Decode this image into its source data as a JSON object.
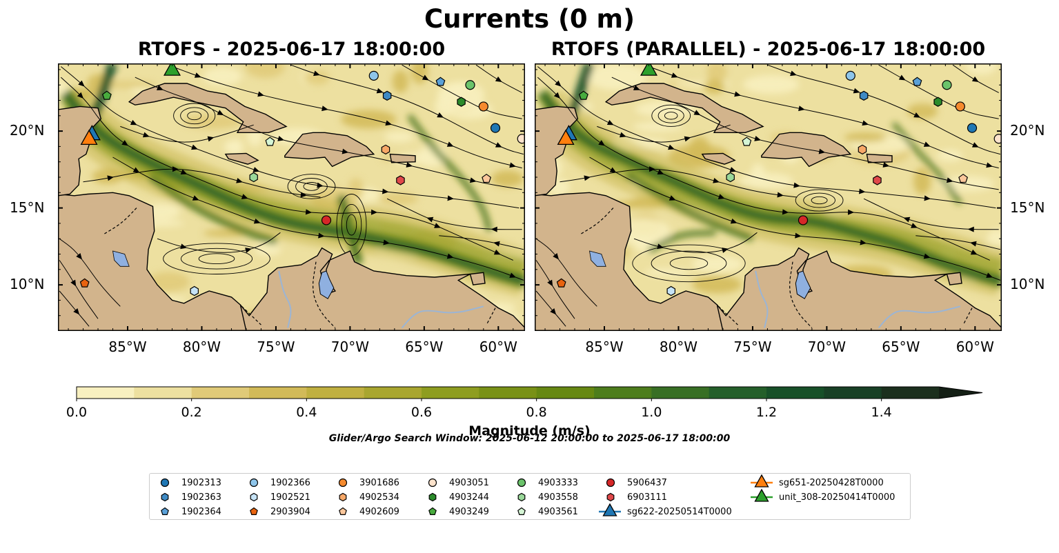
{
  "title": "Currents (0 m)",
  "panels": [
    {
      "title": "RTOFS - 2025-06-17 18:00:00",
      "variant": "rtofs"
    },
    {
      "title": "RTOFS (PARALLEL) - 2025-06-17 18:00:00",
      "variant": "parallel"
    }
  ],
  "axes": {
    "lon_ticks": [
      "85°W",
      "80°W",
      "75°W",
      "70°W",
      "65°W",
      "60°W"
    ],
    "lat_ticks": [
      "20°N",
      "15°N",
      "10°N"
    ],
    "lon_range": [
      -89.7,
      -58.2
    ],
    "lat_range": [
      7.0,
      24.4
    ]
  },
  "colorbar": {
    "label": "Magnitude (m/s)",
    "ticks": [
      "0.0",
      "0.2",
      "0.4",
      "0.6",
      "0.8",
      "1.0",
      "1.2",
      "1.4"
    ],
    "range": [
      0.0,
      1.5
    ],
    "extend": "max",
    "colors": [
      "#f8f0c0",
      "#ede0a0",
      "#e0ca78",
      "#d2ba58",
      "#c0b040",
      "#a9a62f",
      "#8e9d20",
      "#799116",
      "#668812",
      "#4d7d1c",
      "#386f24",
      "#245f2a",
      "#175028",
      "#184025",
      "#1b2f1d",
      "#141f15"
    ]
  },
  "search_window": "Glider/Argo Search Window: 2025-06-12 20:00:00 to 2025-06-17 18:00:00",
  "colors": {
    "land": "#d2b48c",
    "lakes": "#8fb0e0",
    "rivers": "#9bb5d5"
  },
  "floats": [
    {
      "id": "1902313",
      "color": "#1f77b4",
      "marker": "circle",
      "lon": -60.2,
      "lat": 20.2
    },
    {
      "id": "1902363",
      "color": "#3f8ac4",
      "marker": "hexagon",
      "lon": -67.5,
      "lat": 22.3
    },
    {
      "id": "1902364",
      "color": "#5aa0d8",
      "marker": "pentagon",
      "lon": -63.9,
      "lat": 23.2
    },
    {
      "id": "1902366",
      "color": "#8ec5ea",
      "marker": "circle",
      "lon": -68.4,
      "lat": 23.6
    },
    {
      "id": "1902521",
      "color": "#c6e3f6",
      "marker": "hexagon",
      "lon": -80.5,
      "lat": 9.6
    },
    {
      "id": "2903904",
      "color": "#e8630f",
      "marker": "pentagon",
      "lon": -87.9,
      "lat": 10.1
    },
    {
      "id": "3901686",
      "color": "#f58a2e",
      "marker": "circle",
      "lon": -61.0,
      "lat": 21.6
    },
    {
      "id": "4902534",
      "color": "#f7a868",
      "marker": "hexagon",
      "lon": -67.6,
      "lat": 18.8
    },
    {
      "id": "4902609",
      "color": "#fbc79b",
      "marker": "pentagon",
      "lon": -60.8,
      "lat": 16.9
    },
    {
      "id": "4903051",
      "color": "#fde3cc",
      "marker": "circle",
      "lon": -58.4,
      "lat": 19.5
    },
    {
      "id": "4903244",
      "color": "#2b8b2b",
      "marker": "hexagon",
      "lon": -62.5,
      "lat": 21.9
    },
    {
      "id": "4903249",
      "color": "#48ab3e",
      "marker": "pentagon",
      "lon": -86.4,
      "lat": 22.3
    },
    {
      "id": "4903333",
      "color": "#6bc36b",
      "marker": "circle",
      "lon": -61.9,
      "lat": 23.0
    },
    {
      "id": "4903558",
      "color": "#9ad89a",
      "marker": "hexagon",
      "lon": -76.5,
      "lat": 17.0
    },
    {
      "id": "4903561",
      "color": "#d5f5d5",
      "marker": "pentagon",
      "lon": -75.4,
      "lat": 19.3
    },
    {
      "id": "5906437",
      "color": "#d62728",
      "marker": "circle",
      "lon": -71.6,
      "lat": 14.2
    },
    {
      "id": "6903111",
      "color": "#e0484a",
      "marker": "hexagon",
      "lon": -66.6,
      "lat": 16.8
    }
  ],
  "gliders": [
    {
      "id": "sg622-20250514T0000",
      "color": "#1f77b4",
      "lon": -87.4,
      "lat": 19.9
    },
    {
      "id": "sg651-20250428T0000",
      "color": "#ff7f0e",
      "lon": -87.6,
      "lat": 19.6
    },
    {
      "id": "unit_308-20250414T0000",
      "color": "#2ca02c",
      "lon": -82.0,
      "lat": 24.1
    }
  ]
}
